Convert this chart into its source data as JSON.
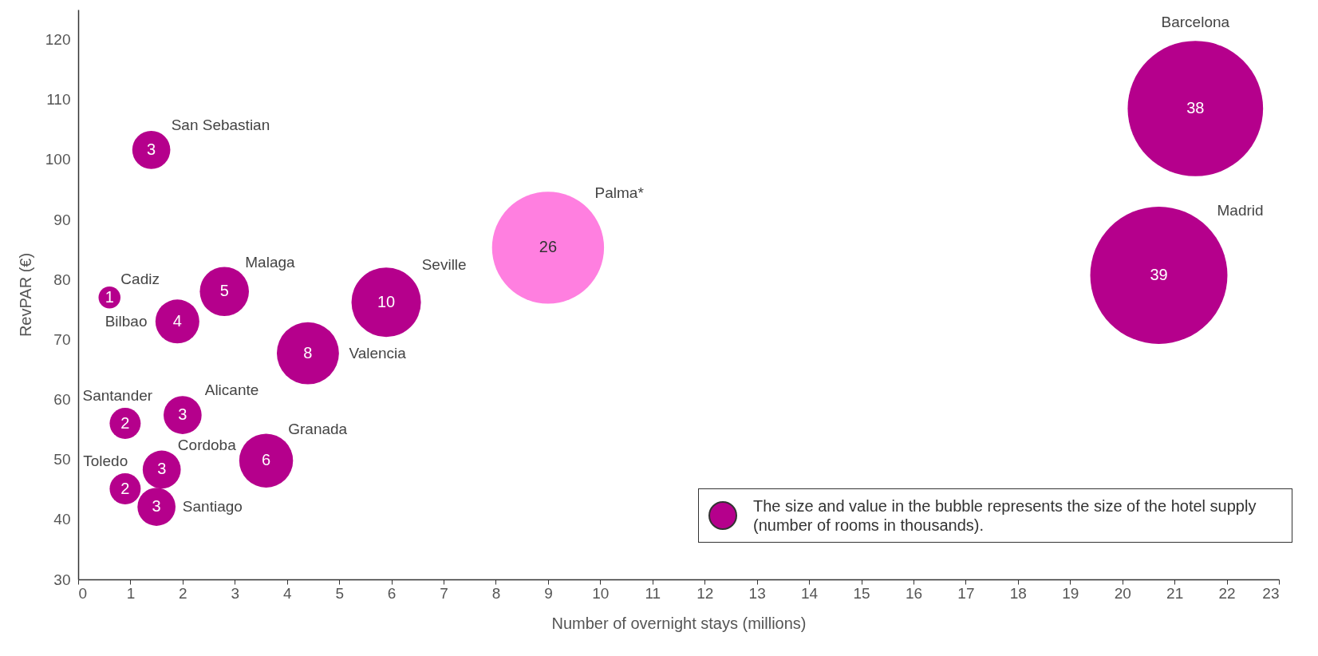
{
  "chart_data": {
    "type": "bubble",
    "xlabel": "Number of overnight stays (millions)",
    "ylabel": "RevPAR (€)",
    "xlim": [
      0,
      23
    ],
    "xticks": [
      0,
      1,
      2,
      3,
      4,
      5,
      6,
      7,
      8,
      9,
      10,
      11,
      12,
      13,
      14,
      15,
      16,
      17,
      18,
      19,
      20,
      21,
      22,
      23
    ],
    "ylim": [
      30,
      125
    ],
    "yticks": [
      30,
      40,
      50,
      60,
      70,
      80,
      90,
      100,
      110,
      120
    ],
    "grid": false,
    "annotations": [
      "The size and value in the bubble represents the size of the hotel supply (number of rooms in thousands)."
    ],
    "series": [
      {
        "name": "Barcelona",
        "color": "#b5008c",
        "x": [
          21.4
        ],
        "values": [
          108.5
        ],
        "sizes": [
          38
        ],
        "value_labels": [
          "38"
        ]
      },
      {
        "name": "Madrid",
        "color": "#b5008c",
        "x": [
          20.7
        ],
        "values": [
          80.7
        ],
        "sizes": [
          39
        ],
        "value_labels": [
          "39"
        ]
      },
      {
        "name": "Palma*",
        "color": "#ff7fe0",
        "x": [
          9.0
        ],
        "values": [
          85.3
        ],
        "sizes": [
          26
        ],
        "value_labels": [
          "26"
        ]
      },
      {
        "name": "San Sebastian",
        "color": "#b5008c",
        "x": [
          1.4
        ],
        "values": [
          101.6
        ],
        "sizes": [
          3
        ],
        "value_labels": [
          "3"
        ]
      },
      {
        "name": "Cadiz",
        "color": "#b5008c",
        "x": [
          0.6
        ],
        "values": [
          77
        ],
        "sizes": [
          1
        ],
        "value_labels": [
          "1"
        ]
      },
      {
        "name": "Bilbao",
        "color": "#b5008c",
        "x": [
          1.9
        ],
        "values": [
          73
        ],
        "sizes": [
          4
        ],
        "value_labels": [
          "4"
        ]
      },
      {
        "name": "Malaga",
        "color": "#b5008c",
        "x": [
          2.8
        ],
        "values": [
          78
        ],
        "sizes": [
          5
        ],
        "value_labels": [
          "5"
        ]
      },
      {
        "name": "Seville",
        "color": "#b5008c",
        "x": [
          5.9
        ],
        "values": [
          76.2
        ],
        "sizes": [
          10
        ],
        "value_labels": [
          "10"
        ]
      },
      {
        "name": "Valencia",
        "color": "#b5008c",
        "x": [
          4.4
        ],
        "values": [
          67.7
        ],
        "sizes": [
          8
        ],
        "value_labels": [
          "8"
        ]
      },
      {
        "name": "Santander",
        "color": "#b5008c",
        "x": [
          0.9
        ],
        "values": [
          56
        ],
        "sizes": [
          2
        ],
        "value_labels": [
          "2"
        ]
      },
      {
        "name": "Alicante",
        "color": "#b5008c",
        "x": [
          2.0
        ],
        "values": [
          57.4
        ],
        "sizes": [
          3
        ],
        "value_labels": [
          "3"
        ]
      },
      {
        "name": "Granada",
        "color": "#b5008c",
        "x": [
          3.6
        ],
        "values": [
          49.8
        ],
        "sizes": [
          6
        ],
        "value_labels": [
          "6"
        ]
      },
      {
        "name": "Cordoba",
        "color": "#b5008c",
        "x": [
          1.6
        ],
        "values": [
          48.3
        ],
        "sizes": [
          3
        ],
        "value_labels": [
          "3"
        ]
      },
      {
        "name": "Toledo",
        "color": "#b5008c",
        "x": [
          0.9
        ],
        "values": [
          45.1
        ],
        "sizes": [
          2
        ],
        "value_labels": [
          "2"
        ]
      },
      {
        "name": "Santiago",
        "color": "#b5008c",
        "x": [
          1.5
        ],
        "values": [
          42.1
        ],
        "sizes": [
          3
        ],
        "value_labels": [
          "3"
        ]
      }
    ]
  }
}
